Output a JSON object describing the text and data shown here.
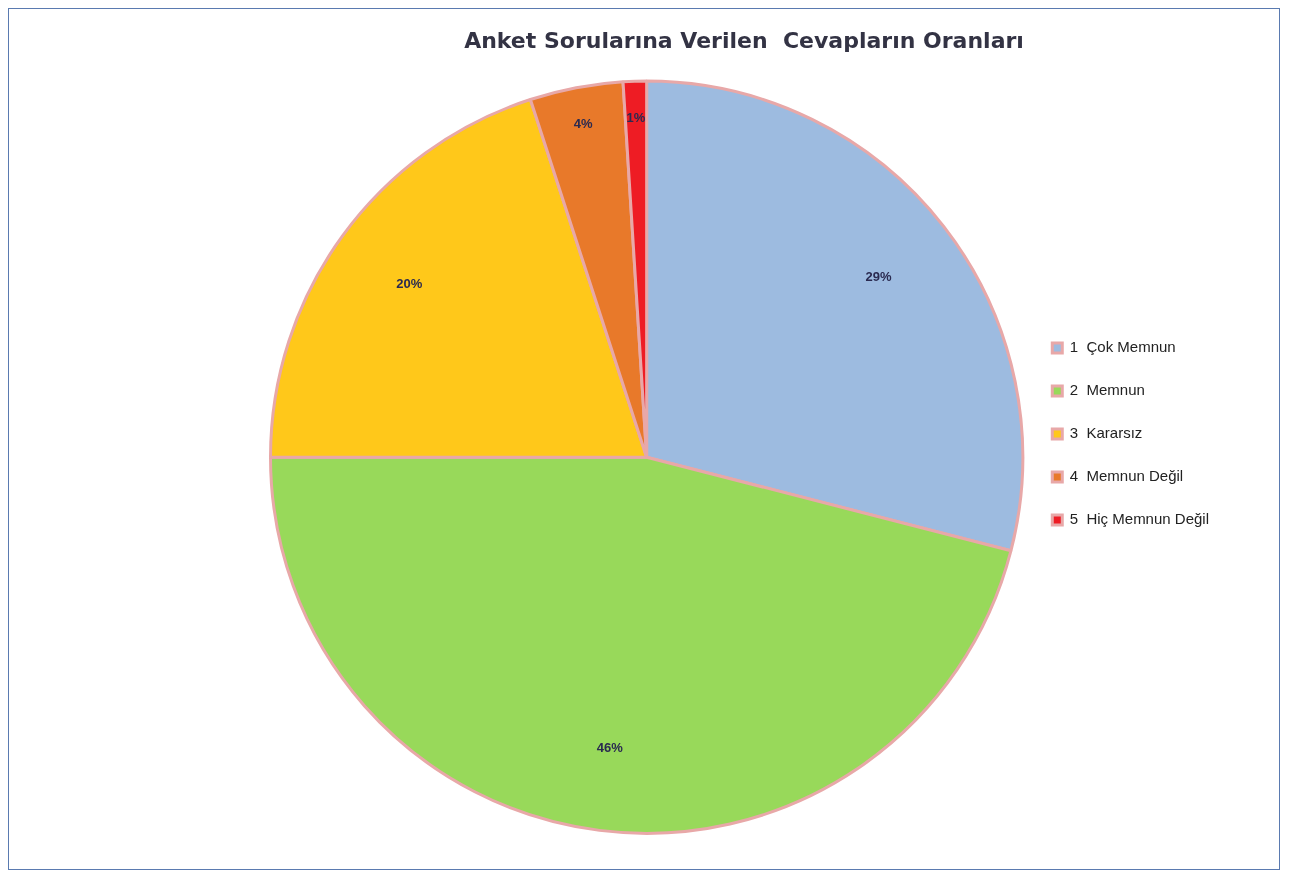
{
  "chart_data": {
    "type": "pie",
    "title": "Anket Sorularına Verilen  Cevapların Oranları",
    "categories": [
      "1  Çok Memnun",
      "2  Memnun",
      "3  Kararsız",
      "4  Memnun Değil",
      "5  Hiç Memnun Değil"
    ],
    "values": [
      29,
      46,
      20,
      4,
      1
    ],
    "colors": [
      "#9dbbe0",
      "#98d95a",
      "#ffc81a",
      "#e8792a",
      "#ee1c24"
    ],
    "value_labels": [
      "29%",
      "46%",
      "20%",
      "4%",
      "1%"
    ],
    "legend": "right"
  }
}
